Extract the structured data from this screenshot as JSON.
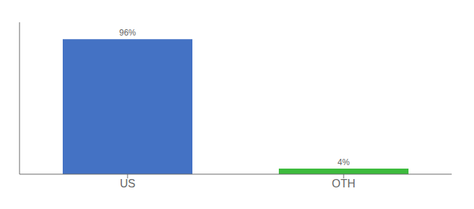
{
  "chart_data": {
    "type": "bar",
    "categories": [
      "US",
      "OTH"
    ],
    "values": [
      96,
      4
    ],
    "value_labels": [
      "96%",
      "4%"
    ],
    "colors": [
      "#4472c4",
      "#3dbb3d"
    ],
    "ylim": [
      0,
      108
    ],
    "yticks": [],
    "tick_labels": "x",
    "data_labels": true,
    "grid": false
  }
}
